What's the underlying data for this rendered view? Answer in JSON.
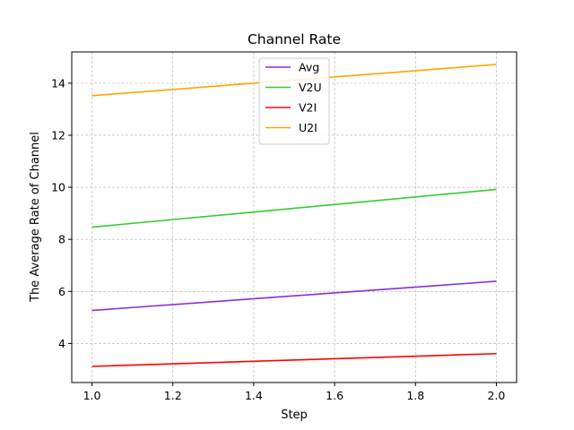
{
  "chart_data": {
    "type": "line",
    "title": "Channel Rate",
    "xlabel": "Step",
    "ylabel": "The Average Rate of Channel",
    "xlim": [
      0.95,
      2.05
    ],
    "ylim": [
      2.5,
      15.2
    ],
    "xticks": [
      1.0,
      1.2,
      1.4,
      1.6,
      1.8,
      2.0
    ],
    "xtick_labels": [
      "1.0",
      "1.2",
      "1.4",
      "1.6",
      "1.8",
      "2.0"
    ],
    "yticks": [
      4,
      6,
      8,
      10,
      12,
      14
    ],
    "ytick_labels": [
      "4",
      "6",
      "8",
      "10",
      "12",
      "14"
    ],
    "grid": true,
    "legend_position": "top-center",
    "x": [
      1.0,
      2.0
    ],
    "series": [
      {
        "name": "Avg",
        "color": "#8a2be2",
        "values": [
          5.27,
          6.39
        ]
      },
      {
        "name": "V2U",
        "color": "#32cd32",
        "values": [
          8.47,
          9.92
        ]
      },
      {
        "name": "V2I",
        "color": "#ff0000",
        "values": [
          3.12,
          3.61
        ]
      },
      {
        "name": "U2I",
        "color": "#ffa500",
        "values": [
          13.52,
          14.72
        ]
      }
    ]
  }
}
